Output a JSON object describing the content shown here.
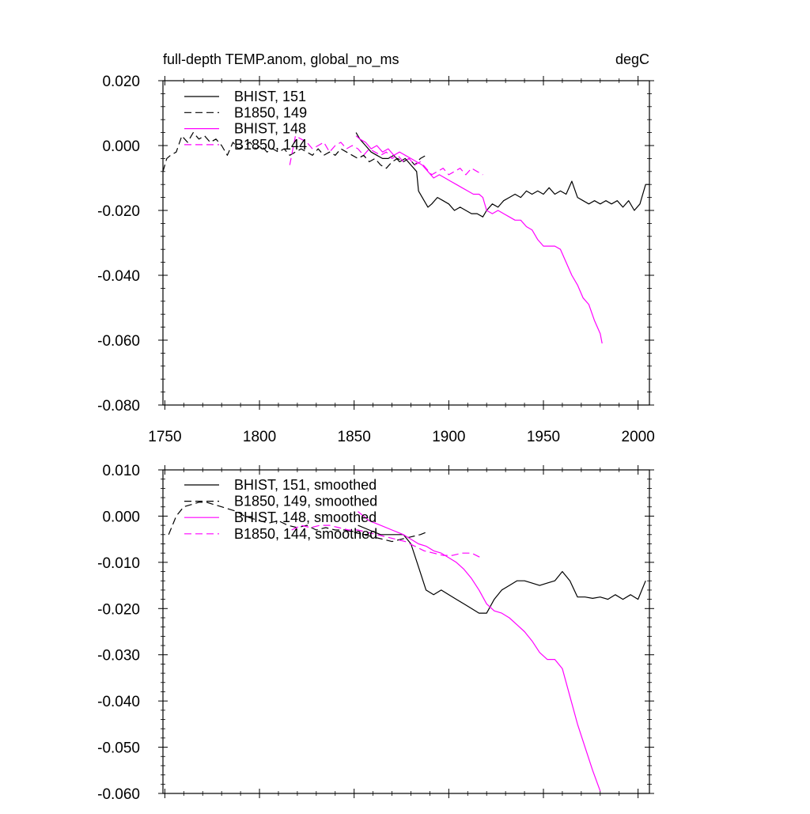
{
  "chart_data": [
    {
      "type": "line",
      "title": "full-depth TEMP.anom, global_no_ms",
      "units": "degC",
      "xlabel": "",
      "ylabel": "",
      "xlim": [
        1749,
        2006
      ],
      "ylim": [
        -0.08,
        0.02
      ],
      "xticks": [
        1750,
        1800,
        1850,
        1900,
        1950,
        2000
      ],
      "xtick_labels": [
        "1750",
        "1800",
        "1850",
        "1900",
        "1950",
        "2000"
      ],
      "yticks": [
        0.02,
        0.0,
        -0.02,
        -0.04,
        -0.06,
        -0.08
      ],
      "ytick_labels": [
        "0.020",
        "0.000",
        "-0.020",
        "-0.040",
        "-0.060",
        "-0.080"
      ],
      "grid": false,
      "legend_position": "top-left",
      "series": [
        {
          "name": "BHIST, 151",
          "color": "#000000",
          "dash": "solid",
          "x": [
            1851,
            1853,
            1856,
            1859,
            1862,
            1865,
            1868,
            1871,
            1874,
            1877,
            1880,
            1883,
            1884,
            1886,
            1889,
            1891,
            1894,
            1897,
            1900,
            1903,
            1906,
            1909,
            1912,
            1915,
            1918,
            1920,
            1923,
            1926,
            1929,
            1932,
            1935,
            1938,
            1941,
            1944,
            1947,
            1950,
            1953,
            1956,
            1959,
            1962,
            1965,
            1968,
            1971,
            1974,
            1977,
            1980,
            1983,
            1986,
            1989,
            1992,
            1995,
            1998,
            2001,
            2004,
            2006
          ],
          "y": [
            0.004,
            0.002,
            0.0,
            -0.002,
            -0.003,
            -0.004,
            -0.004,
            -0.003,
            -0.005,
            -0.004,
            -0.006,
            -0.008,
            -0.014,
            -0.016,
            -0.019,
            -0.018,
            -0.016,
            -0.017,
            -0.018,
            -0.02,
            -0.019,
            -0.02,
            -0.021,
            -0.021,
            -0.022,
            -0.02,
            -0.018,
            -0.019,
            -0.017,
            -0.016,
            -0.015,
            -0.016,
            -0.014,
            -0.015,
            -0.014,
            -0.015,
            -0.013,
            -0.015,
            -0.014,
            -0.015,
            -0.011,
            -0.016,
            -0.017,
            -0.018,
            -0.017,
            -0.018,
            -0.017,
            -0.018,
            -0.017,
            -0.019,
            -0.017,
            -0.02,
            -0.018,
            -0.012,
            -0.012
          ]
        },
        {
          "name": "B1850, 149",
          "color": "#000000",
          "dash": "dashed",
          "x": [
            1749,
            1751,
            1753,
            1756,
            1759,
            1762,
            1765,
            1768,
            1771,
            1774,
            1777,
            1780,
            1783,
            1786,
            1789,
            1792,
            1795,
            1798,
            1801,
            1804,
            1807,
            1810,
            1813,
            1816,
            1819,
            1822,
            1825,
            1828,
            1831,
            1834,
            1837,
            1840,
            1843,
            1846,
            1849,
            1852,
            1855,
            1858,
            1861,
            1864,
            1867,
            1870,
            1873,
            1876,
            1879,
            1882,
            1885,
            1888
          ],
          "y": [
            -0.008,
            -0.004,
            -0.003,
            -0.002,
            0.003,
            0.001,
            0.004,
            0.002,
            0.003,
            0.001,
            0.002,
            0.0,
            -0.003,
            0.001,
            -0.001,
            0.0,
            0.001,
            -0.001,
            0.0,
            -0.002,
            -0.001,
            -0.002,
            -0.001,
            -0.003,
            -0.002,
            -0.001,
            -0.002,
            -0.003,
            -0.001,
            -0.003,
            -0.002,
            -0.003,
            -0.001,
            -0.002,
            -0.003,
            -0.004,
            -0.003,
            -0.005,
            -0.004,
            -0.006,
            -0.007,
            -0.005,
            -0.004,
            -0.005,
            -0.004,
            -0.006,
            -0.004,
            -0.003
          ]
        },
        {
          "name": "BHIST, 148",
          "color": "#ff00ff",
          "dash": "solid",
          "x": [
            1851,
            1853,
            1856,
            1859,
            1862,
            1865,
            1868,
            1871,
            1874,
            1877,
            1880,
            1883,
            1886,
            1889,
            1892,
            1895,
            1898,
            1901,
            1904,
            1907,
            1910,
            1913,
            1916,
            1918,
            1920,
            1923,
            1926,
            1929,
            1932,
            1935,
            1938,
            1941,
            1944,
            1947,
            1950,
            1953,
            1956,
            1959,
            1962,
            1965,
            1968,
            1971,
            1974,
            1977,
            1980,
            1981
          ],
          "y": [
            0.003,
            0.002,
            0.001,
            -0.001,
            0.0,
            -0.002,
            -0.001,
            -0.003,
            -0.002,
            -0.003,
            -0.004,
            -0.005,
            -0.006,
            -0.008,
            -0.01,
            -0.009,
            -0.01,
            -0.011,
            -0.012,
            -0.013,
            -0.014,
            -0.015,
            -0.015,
            -0.016,
            -0.02,
            -0.021,
            -0.02,
            -0.021,
            -0.022,
            -0.023,
            -0.023,
            -0.025,
            -0.026,
            -0.029,
            -0.031,
            -0.031,
            -0.031,
            -0.032,
            -0.036,
            -0.04,
            -0.043,
            -0.047,
            -0.049,
            -0.054,
            -0.058,
            -0.061
          ]
        },
        {
          "name": "B1850, 144",
          "color": "#ff00ff",
          "dash": "dashed",
          "x": [
            1816,
            1819,
            1822,
            1825,
            1828,
            1831,
            1834,
            1837,
            1840,
            1843,
            1846,
            1849,
            1852,
            1855,
            1858,
            1861,
            1864,
            1867,
            1870,
            1873,
            1876,
            1879,
            1882,
            1885,
            1888,
            1891,
            1894,
            1897,
            1900,
            1903,
            1906,
            1909,
            1912,
            1915,
            1918
          ],
          "y": [
            -0.006,
            0.003,
            0.002,
            0.001,
            -0.001,
            0.0,
            0.001,
            -0.002,
            0.0,
            0.001,
            -0.001,
            0.0,
            -0.001,
            -0.003,
            -0.001,
            -0.002,
            -0.003,
            -0.002,
            -0.004,
            -0.003,
            -0.005,
            -0.004,
            -0.006,
            -0.005,
            -0.007,
            -0.009,
            -0.008,
            -0.007,
            -0.009,
            -0.008,
            -0.007,
            -0.009,
            -0.007,
            -0.008,
            -0.009
          ]
        }
      ]
    },
    {
      "type": "line",
      "title": "",
      "xlabel": "",
      "ylabel": "",
      "xlim": [
        1749,
        2006
      ],
      "ylim": [
        -0.06,
        0.01
      ],
      "xticks": [
        1750,
        1800,
        1850,
        1900,
        1950,
        2000
      ],
      "yticks": [
        0.01,
        0.0,
        -0.01,
        -0.02,
        -0.03,
        -0.04,
        -0.05,
        -0.06
      ],
      "ytick_labels": [
        "0.010",
        "0.000",
        "-0.010",
        "-0.020",
        "-0.030",
        "-0.040",
        "-0.050",
        "-0.060"
      ],
      "grid": false,
      "legend_position": "top-left",
      "series": [
        {
          "name": "BHIST, 151, smoothed",
          "color": "#000000",
          "dash": "solid",
          "x": [
            1852,
            1858,
            1864,
            1870,
            1876,
            1880,
            1884,
            1888,
            1892,
            1896,
            1900,
            1904,
            1908,
            1912,
            1916,
            1920,
            1924,
            1928,
            1932,
            1936,
            1940,
            1944,
            1948,
            1952,
            1956,
            1960,
            1964,
            1968,
            1972,
            1976,
            1980,
            1984,
            1988,
            1992,
            1996,
            2000,
            2004
          ],
          "y": [
            -0.002,
            -0.003,
            -0.004,
            -0.004,
            -0.004,
            -0.006,
            -0.011,
            -0.016,
            -0.017,
            -0.016,
            -0.017,
            -0.018,
            -0.019,
            -0.02,
            -0.021,
            -0.021,
            -0.018,
            -0.016,
            -0.015,
            -0.014,
            -0.014,
            -0.0145,
            -0.015,
            -0.0145,
            -0.014,
            -0.012,
            -0.014,
            -0.0175,
            -0.0175,
            -0.0178,
            -0.0175,
            -0.018,
            -0.017,
            -0.018,
            -0.017,
            -0.018,
            -0.014
          ]
        },
        {
          "name": "B1850, 149, smoothed",
          "color": "#000000",
          "dash": "dashed",
          "x": [
            1752,
            1756,
            1760,
            1764,
            1768,
            1772,
            1776,
            1780,
            1784,
            1788,
            1792,
            1796,
            1800,
            1805,
            1810,
            1815,
            1820,
            1825,
            1830,
            1835,
            1840,
            1845,
            1850,
            1855,
            1860,
            1865,
            1870,
            1875,
            1880,
            1885,
            1888
          ],
          "y": [
            -0.004,
            0.0,
            0.002,
            0.0025,
            0.003,
            0.003,
            0.0025,
            0.002,
            0.0015,
            0.001,
            0.0,
            -0.0005,
            -0.001,
            -0.0015,
            -0.001,
            -0.002,
            -0.0025,
            -0.002,
            -0.003,
            -0.0025,
            -0.003,
            -0.003,
            -0.0035,
            -0.004,
            -0.0045,
            -0.005,
            -0.0055,
            -0.005,
            -0.0045,
            -0.004,
            -0.0035
          ]
        },
        {
          "name": "BHIST, 148, smoothed",
          "color": "#ff00ff",
          "dash": "solid",
          "x": [
            1852,
            1858,
            1864,
            1870,
            1876,
            1880,
            1884,
            1888,
            1892,
            1896,
            1900,
            1904,
            1908,
            1912,
            1916,
            1920,
            1924,
            1928,
            1932,
            1936,
            1940,
            1944,
            1948,
            1952,
            1956,
            1960,
            1964,
            1968,
            1972,
            1976,
            1980
          ],
          "y": [
            0.001,
            -0.001,
            -0.002,
            -0.003,
            -0.004,
            -0.005,
            -0.006,
            -0.0065,
            -0.0075,
            -0.008,
            -0.009,
            -0.01,
            -0.0115,
            -0.0135,
            -0.016,
            -0.019,
            -0.0205,
            -0.021,
            -0.022,
            -0.0235,
            -0.025,
            -0.027,
            -0.0295,
            -0.031,
            -0.031,
            -0.033,
            -0.039,
            -0.045,
            -0.05,
            -0.055,
            -0.0595
          ]
        },
        {
          "name": "B1850, 144, smoothed",
          "color": "#ff00ff",
          "dash": "dashed",
          "x": [
            1817,
            1822,
            1827,
            1832,
            1837,
            1842,
            1847,
            1852,
            1857,
            1862,
            1867,
            1872,
            1877,
            1882,
            1887,
            1892,
            1897,
            1902,
            1907,
            1912,
            1917
          ],
          "y": [
            -0.003,
            -0.002,
            -0.0025,
            -0.002,
            -0.002,
            -0.0025,
            -0.003,
            -0.003,
            -0.0035,
            -0.004,
            -0.0045,
            -0.005,
            -0.0055,
            -0.0065,
            -0.0075,
            -0.008,
            -0.0085,
            -0.0085,
            -0.008,
            -0.008,
            -0.009
          ]
        }
      ]
    }
  ]
}
